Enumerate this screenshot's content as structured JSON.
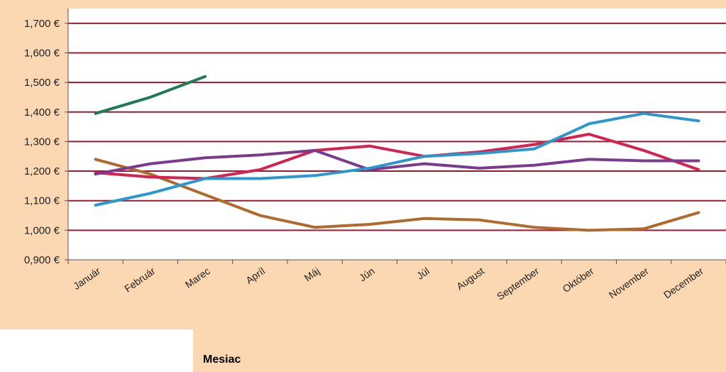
{
  "chart_data": {
    "type": "line",
    "title": "",
    "xlabel": "Mesiac",
    "ylabel": "",
    "categories": [
      "Január",
      "Február",
      "Marec",
      "Apríl",
      "Máj",
      "Jún",
      "Júl",
      "August",
      "September",
      "Október",
      "November",
      "December"
    ],
    "yticks": [
      "0,900 €",
      "1,000 €",
      "1,100 €",
      "1,200 €",
      "1,300 €",
      "1,400 €",
      "1,500 €",
      "1,600 €",
      "1,700 €"
    ],
    "ylim": [
      0.9,
      1.75
    ],
    "grid": true,
    "series": [
      {
        "color": "#1f7a55",
        "values": [
          1.395,
          1.45,
          1.52,
          null,
          null,
          null,
          null,
          null,
          null,
          null,
          null,
          null
        ]
      },
      {
        "color": "#b06a2c",
        "values": [
          1.24,
          1.19,
          1.12,
          1.05,
          1.01,
          1.02,
          1.04,
          1.035,
          1.01,
          1.0,
          1.005,
          1.06
        ]
      },
      {
        "color": "#d6224f",
        "values": [
          1.195,
          1.18,
          1.175,
          1.205,
          1.27,
          1.285,
          1.25,
          1.265,
          1.29,
          1.325,
          1.27,
          1.205
        ]
      },
      {
        "color": "#7b3a8e",
        "values": [
          1.19,
          1.225,
          1.245,
          1.255,
          1.27,
          1.205,
          1.225,
          1.21,
          1.22,
          1.24,
          1.235,
          1.235
        ]
      },
      {
        "color": "#2a97cf",
        "values": [
          1.085,
          1.125,
          1.175,
          1.175,
          1.185,
          1.21,
          1.25,
          1.26,
          1.275,
          1.36,
          1.395,
          1.37
        ]
      }
    ]
  }
}
